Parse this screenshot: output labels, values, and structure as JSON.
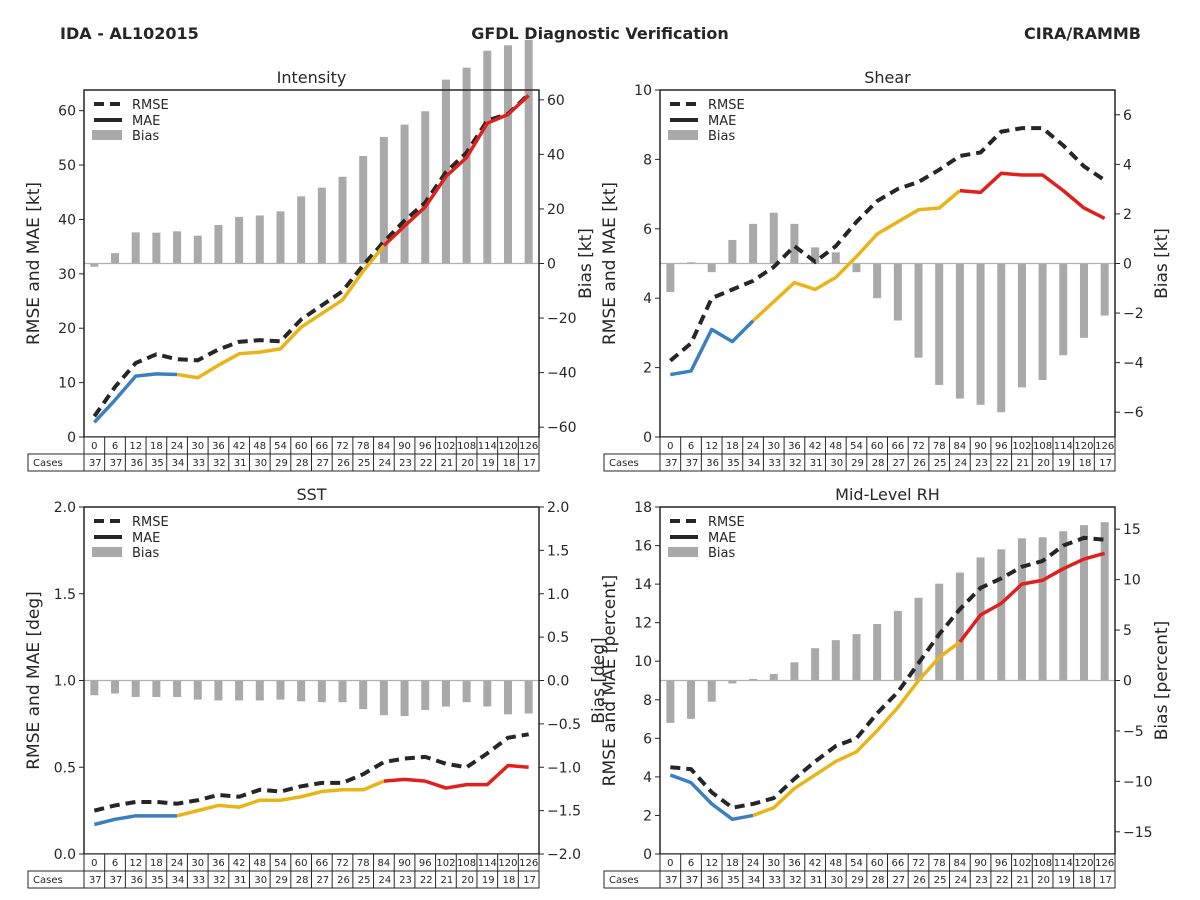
{
  "header": {
    "left": "IDA - AL102015",
    "center": "GFDL Diagnostic Verification",
    "right": "CIRA/RAMMB"
  },
  "legend": {
    "rmse": "RMSE",
    "mae": "MAE",
    "bias": "Bias"
  },
  "colors": {
    "early": "#3a7fbf",
    "mid": "#e8b418",
    "late": "#e0201e",
    "rmse": "#262626",
    "bias_bar": "#a9a9a9",
    "zero_line": "#b0b0b0"
  },
  "table": {
    "cases_label": "Cases",
    "leads": [
      0,
      6,
      12,
      18,
      24,
      30,
      36,
      42,
      48,
      54,
      60,
      66,
      72,
      78,
      84,
      90,
      96,
      102,
      108,
      114,
      120,
      126
    ],
    "cases": [
      37,
      37,
      36,
      35,
      34,
      33,
      32,
      31,
      30,
      29,
      28,
      27,
      26,
      25,
      24,
      23,
      22,
      21,
      20,
      19,
      18,
      17
    ]
  },
  "chart_data": [
    {
      "type": "line",
      "title": "Intensity",
      "xlabel": "Forecast hour",
      "ylabel": "RMSE and MAE [kt]",
      "y2label": "Bias [kt]",
      "ylim": [
        0,
        63.8
      ],
      "y2lim": [
        -63.6,
        63.6
      ],
      "yticks": [
        0,
        10,
        20,
        30,
        40,
        50,
        60
      ],
      "y2ticks": [
        -60,
        -40,
        -20,
        0,
        20,
        40,
        60
      ],
      "legend_position": "top-left",
      "color_segments": {
        "early_until_index": 4,
        "mid_until_index": 14
      },
      "x": [
        0,
        6,
        12,
        18,
        24,
        30,
        36,
        42,
        48,
        54,
        60,
        66,
        72,
        78,
        84,
        90,
        96,
        102,
        108,
        114,
        120,
        126
      ],
      "series": [
        {
          "name": "RMSE",
          "values": [
            3.8,
            9.2,
            13.6,
            15.2,
            14.3,
            14.1,
            16.1,
            17.5,
            17.8,
            17.6,
            21.6,
            24.2,
            26.8,
            31.6,
            35.9,
            39.8,
            43.1,
            48.7,
            52.3,
            58.2,
            59.4,
            63.0
          ]
        },
        {
          "name": "MAE",
          "values": [
            2.7,
            6.8,
            11.2,
            11.6,
            11.5,
            10.9,
            13.2,
            15.3,
            15.6,
            16.2,
            20.2,
            22.7,
            25.2,
            30.5,
            35.2,
            38.8,
            42.3,
            47.9,
            51.4,
            57.7,
            59.3,
            62.8
          ]
        },
        {
          "name": "Bias",
          "values": [
            -1.2,
            3.8,
            11.4,
            11.3,
            11.8,
            10.2,
            14.1,
            17.1,
            17.6,
            19.1,
            24.6,
            27.8,
            31.8,
            39.4,
            46.4,
            50.9,
            55.8,
            67.4,
            71.8,
            78.0,
            80.0,
            82.0
          ]
        }
      ]
    },
    {
      "type": "line",
      "title": "Shear",
      "xlabel": "Forecast hour",
      "ylabel": "RMSE and MAE [kt]",
      "y2label": "Bias [kt]",
      "ylim": [
        0,
        10
      ],
      "y2lim": [
        -7.0,
        7.0
      ],
      "yticks": [
        0,
        2,
        4,
        6,
        8,
        10
      ],
      "y2ticks": [
        -6,
        -4,
        -2,
        0,
        2,
        4,
        6
      ],
      "legend_position": "top-left",
      "color_segments": {
        "early_until_index": 4,
        "mid_until_index": 14
      },
      "x": [
        0,
        6,
        12,
        18,
        24,
        30,
        36,
        42,
        48,
        54,
        60,
        66,
        72,
        78,
        84,
        90,
        96,
        102,
        108,
        114,
        120,
        126
      ],
      "series": [
        {
          "name": "RMSE",
          "values": [
            2.2,
            2.7,
            4.0,
            4.25,
            4.5,
            4.9,
            5.5,
            5.05,
            5.5,
            6.2,
            6.8,
            7.15,
            7.35,
            7.7,
            8.1,
            8.2,
            8.8,
            8.9,
            8.9,
            8.4,
            7.8,
            7.4
          ]
        },
        {
          "name": "MAE",
          "values": [
            1.8,
            1.9,
            3.1,
            2.75,
            3.35,
            3.9,
            4.45,
            4.25,
            4.6,
            5.2,
            5.85,
            6.2,
            6.55,
            6.6,
            7.1,
            7.05,
            7.6,
            7.55,
            7.55,
            7.1,
            6.6,
            6.3
          ]
        },
        {
          "name": "Bias",
          "values": [
            -1.15,
            0.05,
            -0.35,
            0.95,
            1.6,
            2.05,
            1.6,
            0.65,
            0.45,
            -0.35,
            -1.4,
            -2.3,
            -3.8,
            -4.9,
            -5.45,
            -5.7,
            -6.0,
            -5.0,
            -4.7,
            -3.7,
            -3.0,
            -2.1
          ]
        }
      ]
    },
    {
      "type": "line",
      "title": "SST",
      "xlabel": "Forecast hour",
      "ylabel": "RMSE and MAE [deg]",
      "y2label": "Bias [deg]",
      "ylim": [
        0,
        2.0
      ],
      "y2lim": [
        -2.0,
        2.0
      ],
      "yticks": [
        0.0,
        0.5,
        1.0,
        1.5,
        2.0
      ],
      "y2ticks": [
        -2.0,
        -1.5,
        -1.0,
        -0.5,
        0.0,
        0.5,
        1.0,
        1.5,
        2.0
      ],
      "legend_position": "top-left",
      "color_segments": {
        "early_until_index": 4,
        "mid_until_index": 14
      },
      "x": [
        0,
        6,
        12,
        18,
        24,
        30,
        36,
        42,
        48,
        54,
        60,
        66,
        72,
        78,
        84,
        90,
        96,
        102,
        108,
        114,
        120,
        126
      ],
      "series": [
        {
          "name": "RMSE",
          "values": [
            0.25,
            0.28,
            0.3,
            0.3,
            0.29,
            0.31,
            0.34,
            0.33,
            0.37,
            0.36,
            0.39,
            0.41,
            0.41,
            0.46,
            0.53,
            0.55,
            0.56,
            0.52,
            0.5,
            0.58,
            0.67,
            0.69
          ]
        },
        {
          "name": "MAE",
          "values": [
            0.17,
            0.2,
            0.22,
            0.22,
            0.22,
            0.25,
            0.28,
            0.27,
            0.31,
            0.31,
            0.33,
            0.36,
            0.37,
            0.37,
            0.42,
            0.43,
            0.42,
            0.38,
            0.4,
            0.4,
            0.51,
            0.5
          ]
        },
        {
          "name": "Bias",
          "values": [
            -0.17,
            -0.15,
            -0.19,
            -0.19,
            -0.19,
            -0.22,
            -0.23,
            -0.23,
            -0.23,
            -0.22,
            -0.24,
            -0.25,
            -0.25,
            -0.33,
            -0.4,
            -0.41,
            -0.34,
            -0.3,
            -0.25,
            -0.3,
            -0.39,
            -0.38
          ]
        }
      ]
    },
    {
      "type": "line",
      "title": "Mid-Level RH",
      "xlabel": "Forecast hour",
      "ylabel": "RMSE and MAE [percent]",
      "y2label": "Bias [percent]",
      "ylim": [
        0,
        18
      ],
      "y2lim": [
        -17.2,
        17.2
      ],
      "yticks": [
        0,
        2,
        4,
        6,
        8,
        10,
        12,
        14,
        16,
        18
      ],
      "y2ticks": [
        -15,
        -10,
        -5,
        0,
        5,
        10,
        15
      ],
      "legend_position": "top-left",
      "color_segments": {
        "early_until_index": 4,
        "mid_until_index": 14
      },
      "x": [
        0,
        6,
        12,
        18,
        24,
        30,
        36,
        42,
        48,
        54,
        60,
        66,
        72,
        78,
        84,
        90,
        96,
        102,
        108,
        114,
        120,
        126
      ],
      "series": [
        {
          "name": "RMSE",
          "values": [
            4.5,
            4.4,
            3.2,
            2.4,
            2.6,
            2.9,
            3.9,
            4.8,
            5.6,
            6.0,
            7.3,
            8.4,
            9.9,
            11.4,
            12.7,
            13.8,
            14.3,
            14.9,
            15.2,
            16.0,
            16.4,
            16.3
          ]
        },
        {
          "name": "MAE",
          "values": [
            4.1,
            3.7,
            2.6,
            1.8,
            2.0,
            2.4,
            3.4,
            4.1,
            4.8,
            5.3,
            6.4,
            7.6,
            9.0,
            10.2,
            11.0,
            12.4,
            13.0,
            14.0,
            14.2,
            14.8,
            15.3,
            15.6
          ]
        },
        {
          "name": "Bias",
          "values": [
            -4.2,
            -3.8,
            -2.1,
            -0.3,
            0.15,
            0.65,
            1.8,
            3.2,
            4.0,
            4.6,
            5.6,
            6.9,
            8.2,
            9.6,
            10.7,
            12.2,
            13.0,
            14.1,
            14.2,
            14.8,
            15.4,
            15.7
          ]
        }
      ]
    }
  ]
}
